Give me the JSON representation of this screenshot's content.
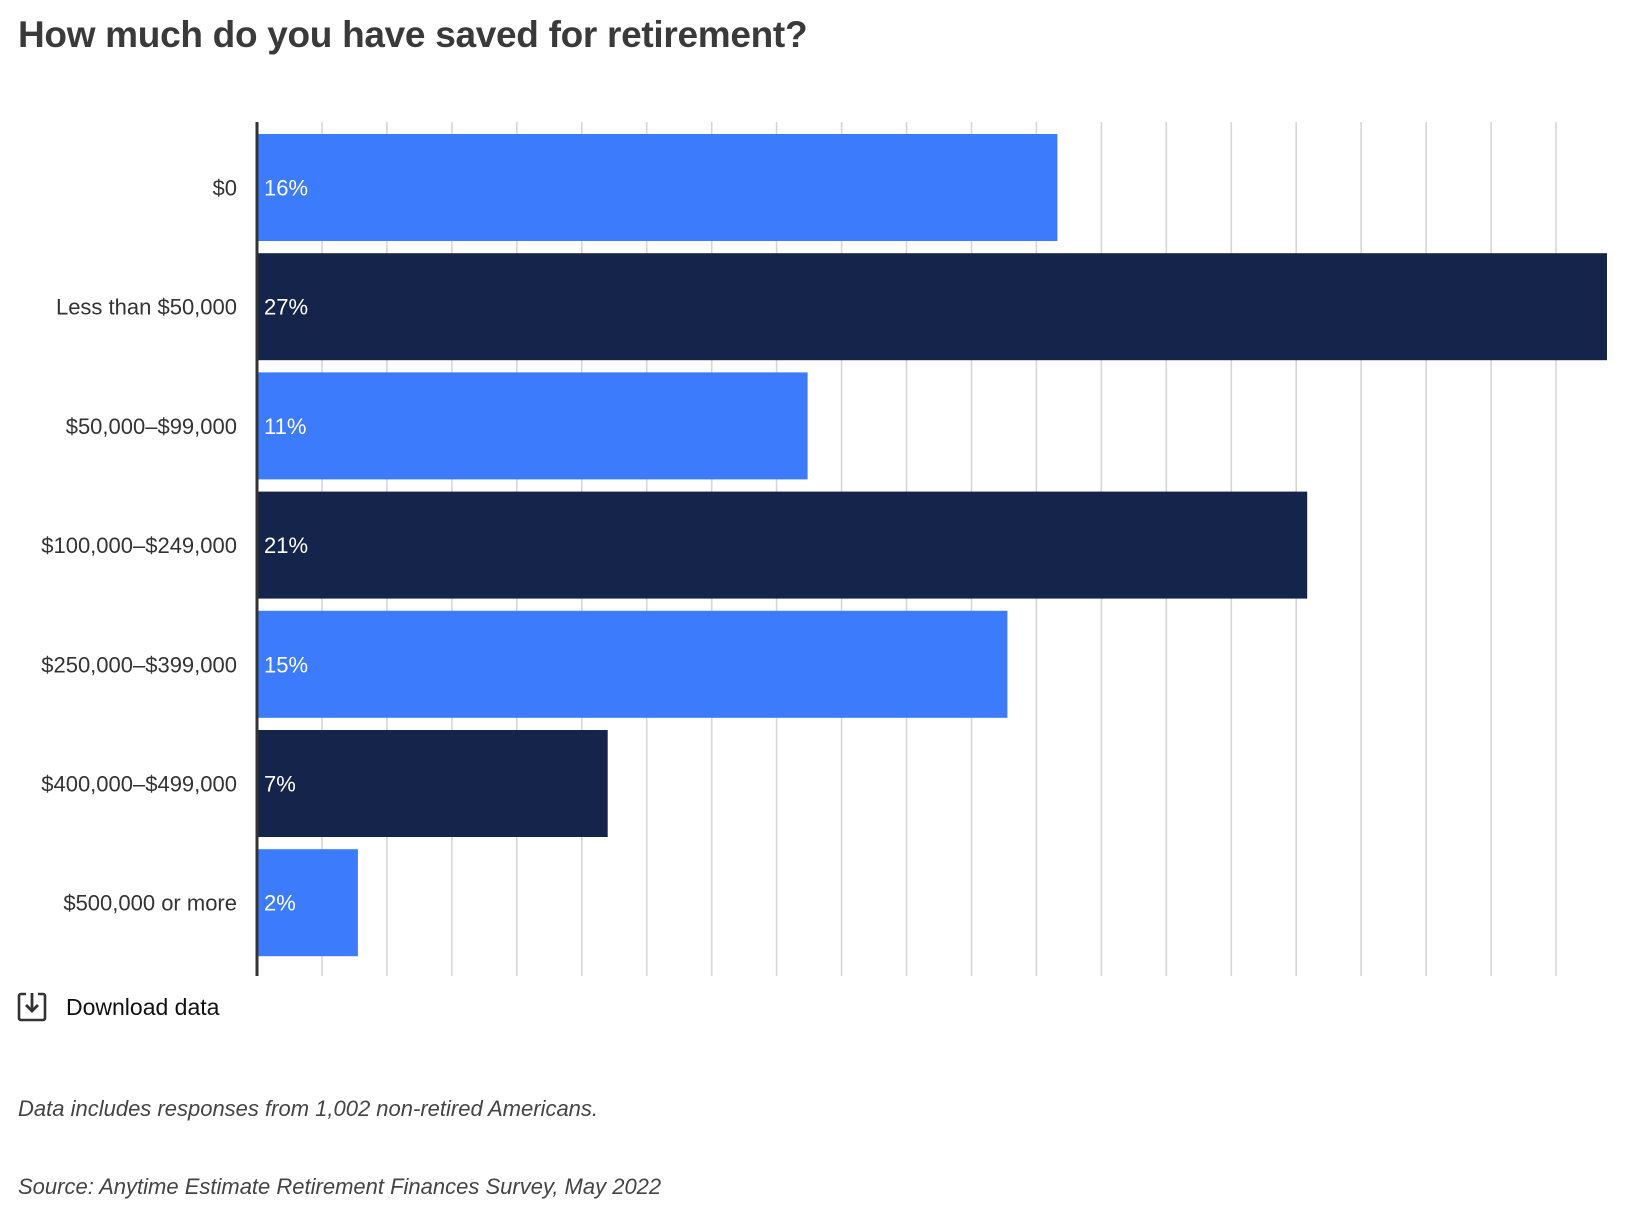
{
  "title": "How much do you have saved for retirement?",
  "download_label": "Download data",
  "footnote": "Data includes responses from 1,002 non-retired Americans.",
  "source": "Source: Anytime Estimate Retirement Finances Survey, May 2022",
  "colors": {
    "bar_light": "#3b7bfc",
    "bar_dark": "#15244b",
    "grid": "#d6d6d6",
    "axis": "#333333"
  },
  "icons": {
    "download": "download-icon"
  },
  "chart_data": {
    "type": "bar",
    "orientation": "horizontal",
    "title": "How much do you have saved for retirement?",
    "xlabel": "",
    "ylabel": "",
    "xlim": [
      0,
      27
    ],
    "grid": true,
    "categories": [
      "$0",
      "Less than $50,000",
      "$50,000–$99,000",
      "$100,000–$249,000",
      "$250,000–$399,000",
      "$400,000–$499,000",
      "$500,000 or more"
    ],
    "values": [
      16,
      27,
      11,
      21,
      15,
      7,
      2
    ],
    "data_labels": [
      "16%",
      "27%",
      "11%",
      "21%",
      "15%",
      "7%",
      "2%"
    ],
    "bar_colors": [
      "#3b7bfc",
      "#15244b",
      "#3b7bfc",
      "#15244b",
      "#3b7bfc",
      "#15244b",
      "#3b7bfc"
    ]
  }
}
